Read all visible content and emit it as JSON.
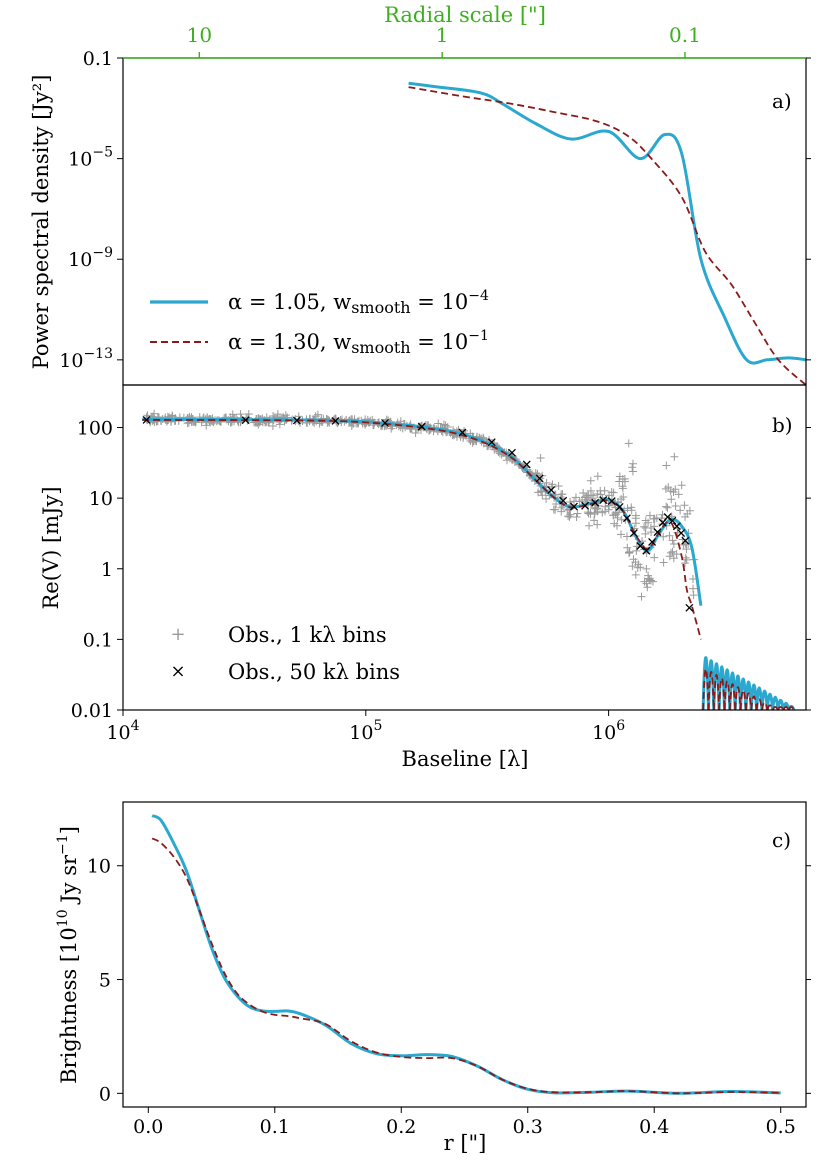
{
  "figure": {
    "colors": {
      "series_a": "#2aa8d0",
      "series_b": "#8b1a1a",
      "obs_fine": "#9a9a9a",
      "obs_coarse": "#000000",
      "top_axis": "#3cb01e"
    }
  },
  "chart_data": [
    {
      "id": "a",
      "type": "line",
      "panel_label": "a)",
      "ylabel": "Power spectral density [Jy²]",
      "xscale": "log",
      "yscale": "log",
      "xlim": [
        10000,
        6500000
      ],
      "ylim": [
        1e-14,
        0.1
      ],
      "yticks": [
        {
          "value": 0.1,
          "label": "0.1",
          "mantissa": "",
          "exp": ""
        },
        {
          "value": 1e-05,
          "label": "",
          "mantissa": "10",
          "exp": "−5"
        },
        {
          "value": 1e-09,
          "label": "",
          "mantissa": "10",
          "exp": "−9"
        },
        {
          "value": 1e-13,
          "label": "",
          "mantissa": "10",
          "exp": "−13"
        }
      ],
      "top_axis": {
        "label": "Radial scale [\"]",
        "ticks": [
          {
            "baseline": 20626,
            "label": "10"
          },
          {
            "baseline": 206265,
            "label": "1"
          },
          {
            "baseline": 2062650,
            "label": "0.1"
          }
        ]
      },
      "legend": {
        "placement": "lower-left",
        "entries": [
          {
            "series": 0,
            "text": "α = 1.05,  w",
            "sub": "smooth",
            "mid": " = 10",
            "sup": "−4"
          },
          {
            "series": 1,
            "text": "α = 1.30,  w",
            "sub": "smooth",
            "mid": " = 10",
            "sup": "−1"
          }
        ]
      },
      "series": [
        {
          "name": "α = 1.05, w_smooth = 1e-4",
          "style": "solid",
          "x": [
            150000,
            200000,
            300000,
            370000,
            500000,
            700000,
            1000000,
            1350000,
            1700000,
            2000000,
            2400000,
            3000000,
            3700000,
            4500000,
            5500000,
            6500000
          ],
          "y": [
            0.01,
            0.007,
            0.004,
            0.0014,
            0.00025,
            6e-05,
            0.00012,
            1e-05,
            9e-05,
            1.6e-05,
            1e-09,
            5e-12,
            1e-13,
            1e-13,
            1.2e-13,
            1e-13
          ]
        },
        {
          "name": "α = 1.30, w_smooth = 1e-1",
          "style": "dashed",
          "x": [
            150000,
            250000,
            400000,
            600000,
            900000,
            1200000,
            1500000,
            2000000,
            2500000,
            3200000,
            4000000,
            5000000,
            6500000
          ],
          "y": [
            0.007,
            0.003,
            0.0015,
            0.0007,
            0.0003,
            8e-05,
            1e-05,
            3e-07,
            2e-09,
            1e-10,
            3e-12,
            1e-13,
            1e-14
          ]
        }
      ]
    },
    {
      "id": "b",
      "type": "line",
      "panel_label": "b)",
      "xlabel": "Baseline [λ]",
      "ylabel": "Re(V) [mJy]",
      "xscale": "log",
      "yscale": "log",
      "xlim": [
        10000,
        6500000
      ],
      "ylim": [
        0.01,
        400
      ],
      "xticks": [
        {
          "value": 10000,
          "mantissa": "10",
          "exp": "4"
        },
        {
          "value": 100000,
          "mantissa": "10",
          "exp": "5"
        },
        {
          "value": 1000000,
          "mantissa": "10",
          "exp": "6"
        }
      ],
      "yticks": [
        {
          "value": 100,
          "label": "100"
        },
        {
          "value": 10,
          "label": "10"
        },
        {
          "value": 1,
          "label": "1"
        },
        {
          "value": 0.1,
          "label": "0.1"
        },
        {
          "value": 0.01,
          "label": "0.01"
        }
      ],
      "legend": {
        "placement": "lower-left",
        "entries": [
          {
            "marker": "+",
            "text": "Obs., 1 kλ bins"
          },
          {
            "marker": "×",
            "text": "Obs., 50 kλ bins"
          }
        ]
      },
      "series": [
        {
          "name": "α = 1.05, w_smooth = 1e-4",
          "style": "solid",
          "x": [
            12000,
            50000,
            100000,
            200000,
            300000,
            400000,
            500000,
            600000,
            700000,
            850000,
            1000000,
            1150000,
            1300000,
            1450000,
            1600000,
            1800000,
            2000000,
            2200000,
            2400000
          ],
          "y": [
            130,
            128,
            120,
            95,
            65,
            38,
            18,
            10,
            7.5,
            8.5,
            9.5,
            6.5,
            2.8,
            1.8,
            3.0,
            5.0,
            4.0,
            2.0,
            0.3
          ]
        },
        {
          "name": "α = 1.30, w_smooth = 1e-1",
          "style": "dashed",
          "x": [
            12000,
            50000,
            100000,
            200000,
            300000,
            400000,
            500000,
            600000,
            700000,
            850000,
            1000000,
            1150000,
            1300000,
            1450000,
            1600000,
            1800000,
            2000000,
            2100000,
            2200000,
            2400000
          ],
          "y": [
            128,
            126,
            118,
            92,
            63,
            37,
            18,
            10,
            7.4,
            8.3,
            9.2,
            6.4,
            2.9,
            1.9,
            3.1,
            4.6,
            1.5,
            0.5,
            0.3,
            0.1
          ]
        },
        {
          "name": "Obs., 50 kλ bins",
          "style": "marker-x",
          "x": [
            12500,
            32000,
            52000,
            75000,
            120000,
            170000,
            250000,
            330000,
            400000,
            460000,
            520000,
            580000,
            650000,
            720000,
            800000,
            880000,
            950000,
            1030000,
            1110000,
            1190000,
            1270000,
            1350000,
            1430000,
            1510000,
            1590000,
            1670000,
            1750000,
            1830000,
            1910000,
            1990000,
            2070000,
            2150000
          ],
          "y": [
            128,
            127,
            126,
            124,
            116,
            103,
            85,
            62,
            44,
            30,
            19,
            13,
            9.2,
            7.6,
            7.8,
            8.6,
            9.4,
            9.1,
            7.5,
            5.2,
            3.2,
            2.1,
            1.8,
            2.4,
            3.3,
            4.5,
            5.4,
            4.8,
            4.0,
            3.2,
            2.5,
            0.28
          ]
        }
      ]
    },
    {
      "id": "c",
      "type": "line",
      "panel_label": "c)",
      "xlabel": "r [\"]",
      "ylabel": "Brightness [10¹⁰ Jy sr⁻¹]",
      "xlim": [
        -0.02,
        0.52
      ],
      "ylim": [
        -0.6,
        12.8
      ],
      "xticks": [
        {
          "value": 0.0,
          "label": "0.0"
        },
        {
          "value": 0.1,
          "label": "0.1"
        },
        {
          "value": 0.2,
          "label": "0.2"
        },
        {
          "value": 0.3,
          "label": "0.3"
        },
        {
          "value": 0.4,
          "label": "0.4"
        },
        {
          "value": 0.5,
          "label": "0.5"
        }
      ],
      "yticks": [
        {
          "value": 0,
          "label": "0"
        },
        {
          "value": 5,
          "label": "5"
        },
        {
          "value": 10,
          "label": "10"
        }
      ],
      "ylabel_parts": {
        "prefix": "Brightness [10",
        "sup1": "10",
        "mid": " Jy sr",
        "sup2": "−1",
        "suffix": "]"
      },
      "series": [
        {
          "name": "α = 1.05, w_smooth = 1e-4",
          "style": "solid",
          "x": [
            0.003,
            0.01,
            0.02,
            0.03,
            0.04,
            0.05,
            0.06,
            0.07,
            0.08,
            0.09,
            0.1,
            0.11,
            0.12,
            0.14,
            0.16,
            0.18,
            0.2,
            0.22,
            0.24,
            0.26,
            0.28,
            0.3,
            0.32,
            0.35,
            0.38,
            0.42,
            0.46,
            0.5
          ],
          "y": [
            12.2,
            12.0,
            11.0,
            9.8,
            8.1,
            6.4,
            5.1,
            4.3,
            3.8,
            3.62,
            3.6,
            3.62,
            3.5,
            3.0,
            2.2,
            1.75,
            1.65,
            1.7,
            1.62,
            1.2,
            0.6,
            0.18,
            0.03,
            0.05,
            0.1,
            0.0,
            0.08,
            0.02
          ]
        },
        {
          "name": "α = 1.30, w_smooth = 1e-1",
          "style": "dashed",
          "x": [
            0.003,
            0.01,
            0.02,
            0.03,
            0.04,
            0.05,
            0.06,
            0.07,
            0.08,
            0.09,
            0.1,
            0.11,
            0.12,
            0.14,
            0.16,
            0.18,
            0.2,
            0.22,
            0.24,
            0.26,
            0.28,
            0.3,
            0.32,
            0.35,
            0.38,
            0.42,
            0.46,
            0.5
          ],
          "y": [
            11.2,
            11.0,
            10.4,
            9.5,
            8.1,
            6.6,
            5.3,
            4.4,
            3.9,
            3.6,
            3.45,
            3.4,
            3.3,
            3.05,
            2.3,
            1.8,
            1.6,
            1.55,
            1.55,
            1.2,
            0.6,
            0.2,
            0.05,
            0.05,
            0.1,
            0.0,
            0.06,
            0.02
          ]
        }
      ]
    }
  ]
}
